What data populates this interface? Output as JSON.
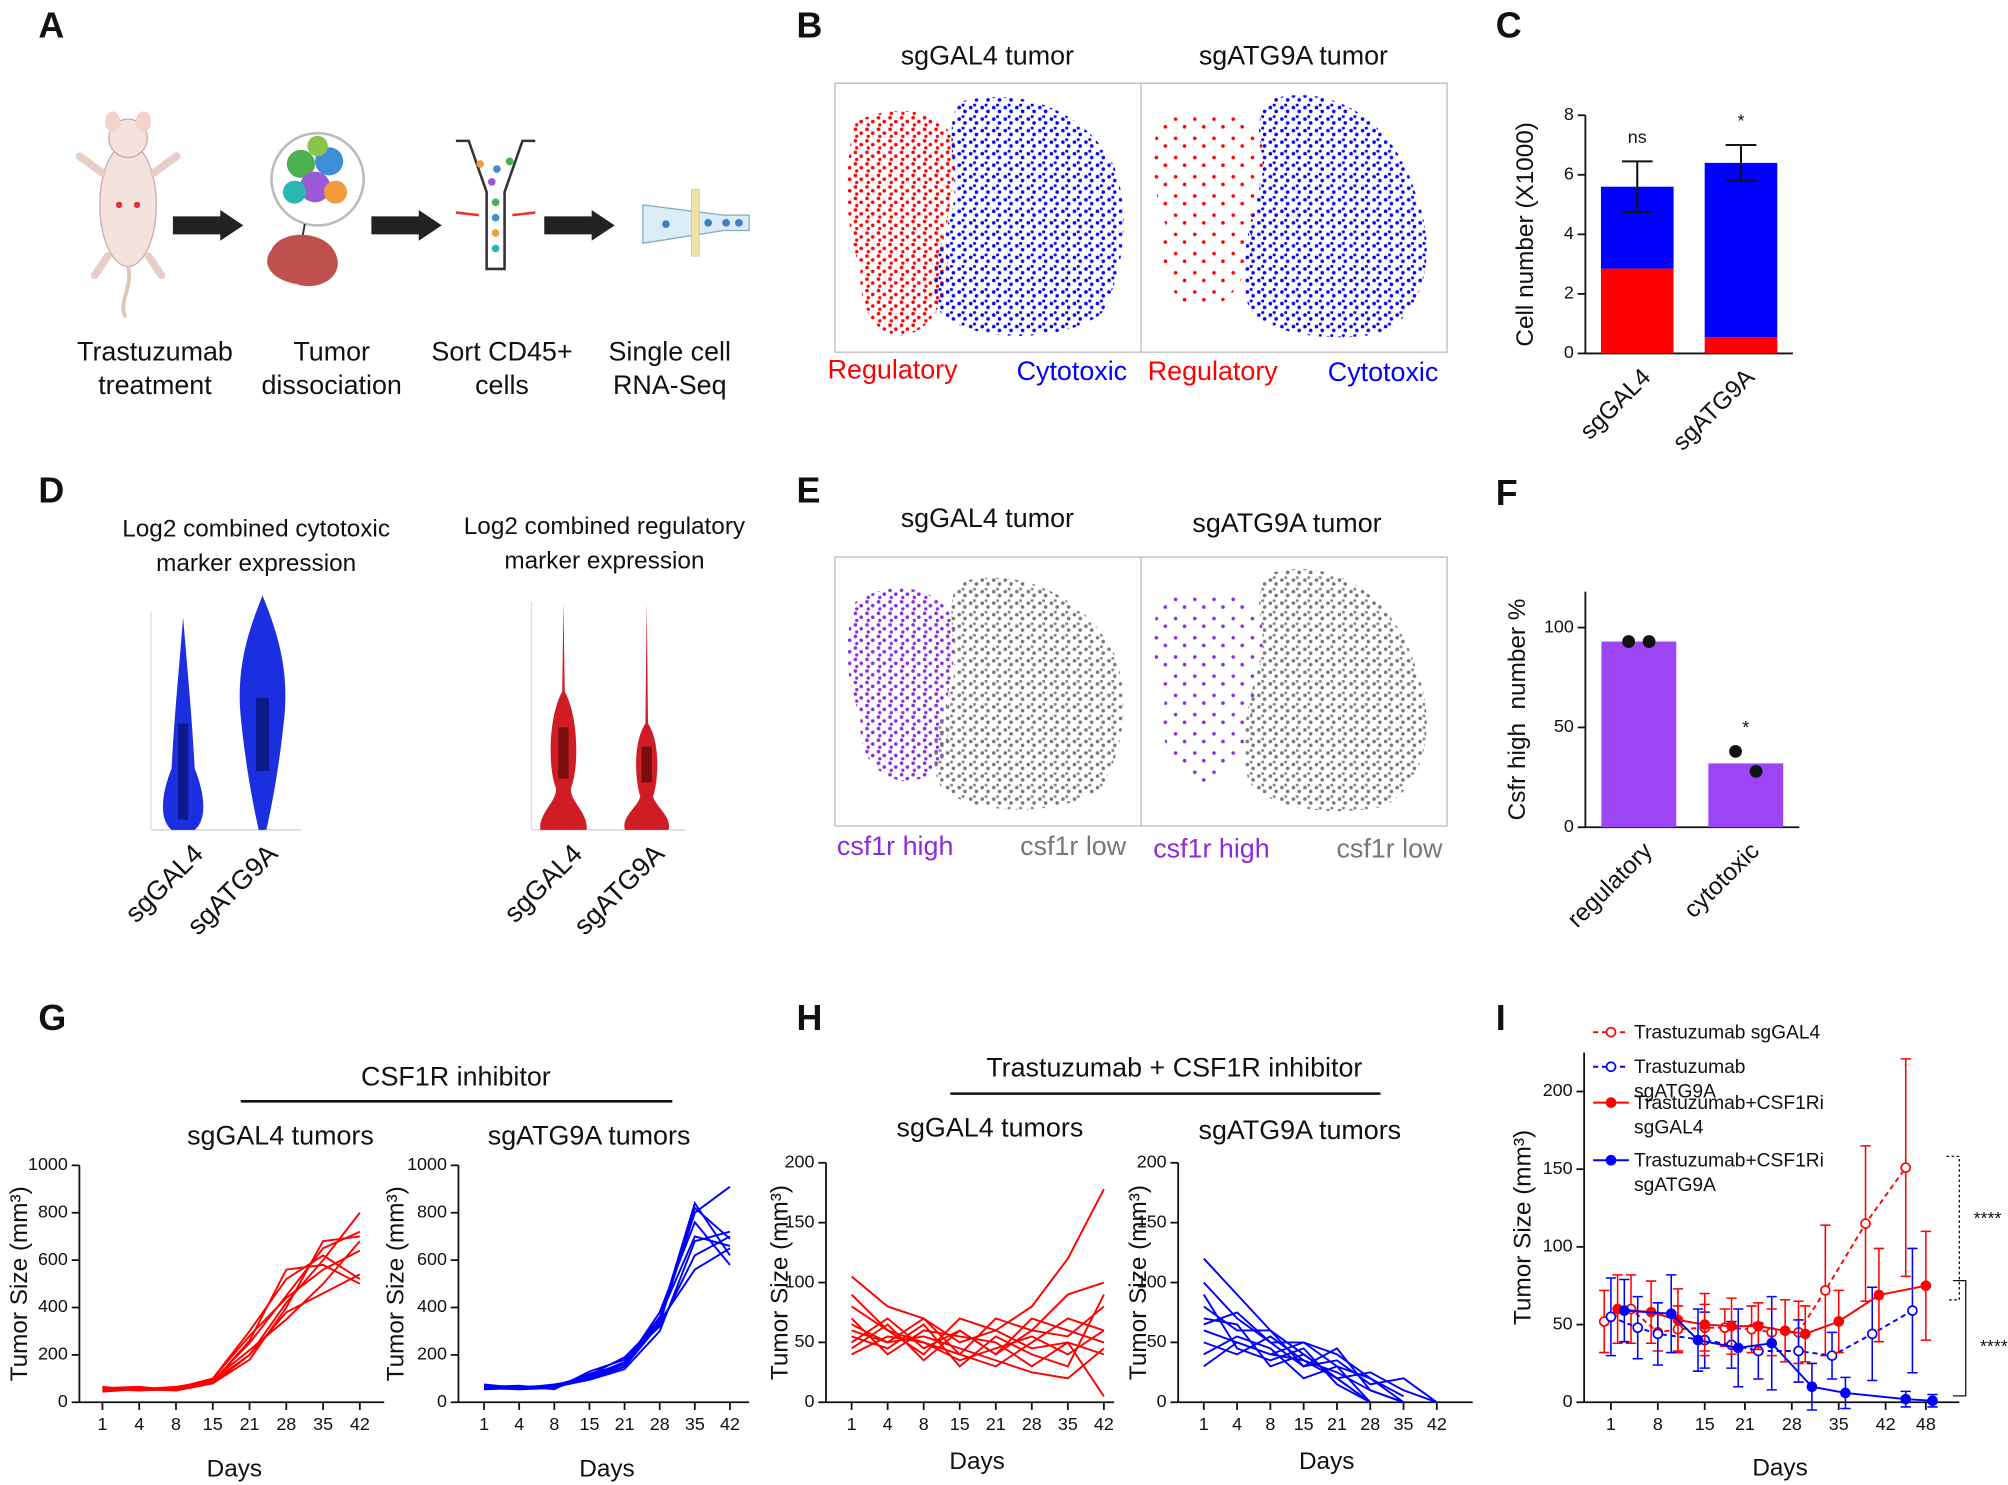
{
  "panel_labels": [
    "A",
    "B",
    "C",
    "D",
    "E",
    "F",
    "G",
    "H",
    "I"
  ],
  "panel_a": {
    "steps": [
      [
        "Trastuzumab",
        "treatment"
      ],
      [
        "Tumor",
        "dissociation"
      ],
      [
        "Sort CD45+",
        "cells"
      ],
      [
        "Single cell",
        "RNA-Seq"
      ]
    ]
  },
  "panel_b": {
    "titles": [
      "sgGAL4 tumor",
      "sgATG9A tumor"
    ],
    "labels": [
      "Regulatory",
      "Cytotoxic"
    ]
  },
  "panel_d": {
    "titles": [
      [
        "Log2 combined cytotoxic",
        "marker expression"
      ],
      [
        "Log2 combined regulatory",
        "marker expression"
      ]
    ],
    "categories": [
      "sgGAL4",
      "sgATG9A"
    ]
  },
  "panel_e": {
    "titles": [
      "sgGAL4 tumor",
      "sgATG9A tumor"
    ],
    "labels": [
      "csf1r high",
      "csf1r low"
    ]
  },
  "panel_g": {
    "header": "CSF1R inhibitor"
  },
  "panel_h": {
    "header": "Trastuzumab + CSF1R inhibitor"
  },
  "chart_data": [
    {
      "type": "bar",
      "stacked": true,
      "categories": [
        "sgGAL4",
        "sgATG9A"
      ],
      "series": [
        {
          "color": "#ff0000",
          "values": [
            2.85,
            0.55
          ]
        },
        {
          "color": "#0000ff",
          "values": [
            2.75,
            5.85
          ],
          "errors": [
            0.85,
            0.6
          ]
        }
      ],
      "annotations": [
        "ns",
        "*"
      ],
      "ylabel": "Cell number (X1000)",
      "ylim": [
        0,
        8
      ],
      "yticks": [
        0,
        2,
        4,
        6,
        8
      ]
    },
    {
      "type": "bar",
      "categories": [
        "regulatory",
        "cytotoxic"
      ],
      "values": [
        93,
        32
      ],
      "color": "#9b45f5",
      "points": [
        [
          93,
          93
        ],
        [
          38,
          28
        ]
      ],
      "annotations": [
        null,
        "*"
      ],
      "ylabel": "Csfr high  number %",
      "ylim": [
        0,
        118
      ],
      "yticks": [
        0,
        50,
        100
      ]
    },
    {
      "type": "line",
      "title": "sgGAL4 tumors",
      "color": "#ff0000",
      "xlabel": "Days",
      "ylabel": "Tumor Size (mm³)",
      "categories": [
        "1",
        "4",
        "8",
        "15",
        "21",
        "28",
        "35",
        "42"
      ],
      "ylim": [
        0,
        1000
      ],
      "yticks": [
        0,
        200,
        400,
        600,
        800,
        1000
      ],
      "series": [
        {
          "values": [
            50,
            55,
            50,
            80,
            200,
            420,
            600,
            800
          ]
        },
        {
          "values": [
            60,
            60,
            55,
            90,
            250,
            450,
            650,
            720
          ]
        },
        {
          "values": [
            55,
            50,
            60,
            100,
            300,
            520,
            620,
            520
          ]
        },
        {
          "values": [
            60,
            65,
            50,
            80,
            180,
            400,
            680,
            700
          ]
        },
        {
          "values": [
            45,
            55,
            55,
            95,
            220,
            350,
            500,
            680
          ]
        },
        {
          "values": [
            55,
            60,
            50,
            85,
            260,
            560,
            580,
            500
          ]
        },
        {
          "values": [
            65,
            50,
            55,
            100,
            280,
            440,
            560,
            640
          ]
        },
        {
          "values": [
            50,
            55,
            65,
            90,
            200,
            380,
            460,
            540
          ]
        }
      ]
    },
    {
      "type": "line",
      "title": "sgATG9A tumors",
      "color": "#0000ff",
      "xlabel": "Days",
      "ylabel": "Tumor Size (mm³)",
      "categories": [
        "1",
        "4",
        "8",
        "15",
        "21",
        "28",
        "35",
        "42"
      ],
      "ylim": [
        0,
        1000
      ],
      "yticks": [
        0,
        200,
        400,
        600,
        800,
        1000
      ],
      "series": [
        {
          "values": [
            60,
            65,
            60,
            120,
            160,
            350,
            840,
            620
          ]
        },
        {
          "values": [
            70,
            55,
            70,
            100,
            150,
            340,
            800,
            910
          ]
        },
        {
          "values": [
            55,
            60,
            65,
            110,
            170,
            360,
            700,
            660
          ]
        },
        {
          "values": [
            65,
            70,
            55,
            130,
            180,
            320,
            620,
            700
          ]
        },
        {
          "values": [
            60,
            55,
            60,
            105,
            160,
            380,
            760,
            580
          ]
        },
        {
          "values": [
            75,
            60,
            65,
            95,
            140,
            300,
            680,
            720
          ]
        },
        {
          "values": [
            55,
            65,
            70,
            115,
            190,
            340,
            560,
            650
          ]
        },
        {
          "values": [
            65,
            60,
            75,
            100,
            150,
            330,
            820,
            690
          ]
        }
      ]
    },
    {
      "type": "line",
      "title": "sgGAL4 tumors",
      "color": "#ff0000",
      "xlabel": "Days",
      "ylabel": "Tumor Size (mm³)",
      "categories": [
        "1",
        "4",
        "8",
        "15",
        "21",
        "28",
        "35",
        "42"
      ],
      "ylim": [
        0,
        200
      ],
      "yticks": [
        0,
        50,
        100,
        150,
        200
      ],
      "series": [
        {
          "values": [
            105,
            80,
            70,
            50,
            60,
            80,
            120,
            178
          ]
        },
        {
          "values": [
            80,
            60,
            50,
            40,
            70,
            60,
            90,
            100
          ]
        },
        {
          "values": [
            60,
            50,
            70,
            40,
            30,
            50,
            70,
            60
          ]
        },
        {
          "values": [
            50,
            70,
            45,
            60,
            40,
            60,
            55,
            80
          ]
        },
        {
          "values": [
            70,
            40,
            60,
            55,
            50,
            30,
            50,
            40
          ]
        },
        {
          "values": [
            40,
            55,
            50,
            35,
            45,
            55,
            40,
            60
          ]
        },
        {
          "values": [
            90,
            60,
            40,
            70,
            60,
            45,
            50,
            5
          ]
        },
        {
          "values": [
            55,
            45,
            65,
            30,
            55,
            40,
            30,
            90
          ]
        },
        {
          "values": [
            45,
            65,
            35,
            60,
            40,
            70,
            60,
            50
          ]
        },
        {
          "values": [
            65,
            50,
            55,
            45,
            35,
            25,
            20,
            45
          ]
        }
      ]
    },
    {
      "type": "line",
      "title": "sgATG9A tumors",
      "color": "#0000ff",
      "xlabel": "Days",
      "ylabel": "Tumor Size (mm³)",
      "categories": [
        "1",
        "4",
        "8",
        "15",
        "21",
        "28",
        "35",
        "42"
      ],
      "ylim": [
        0,
        200
      ],
      "yticks": [
        0,
        50,
        100,
        150,
        200
      ],
      "series": [
        {
          "values": [
            120,
            90,
            60,
            40,
            20,
            0,
            null,
            null
          ]
        },
        {
          "values": [
            100,
            70,
            50,
            50,
            40,
            20,
            0,
            null
          ]
        },
        {
          "values": [
            80,
            60,
            60,
            30,
            45,
            10,
            0,
            null
          ]
        },
        {
          "values": [
            60,
            50,
            40,
            50,
            30,
            0,
            null,
            null
          ]
        },
        {
          "values": [
            70,
            65,
            30,
            40,
            20,
            25,
            10,
            0
          ]
        },
        {
          "values": [
            50,
            40,
            55,
            35,
            25,
            10,
            0,
            null
          ]
        },
        {
          "values": [
            90,
            45,
            35,
            45,
            15,
            0,
            null,
            null
          ]
        },
        {
          "values": [
            40,
            55,
            45,
            20,
            30,
            20,
            5,
            null
          ]
        },
        {
          "values": [
            65,
            75,
            50,
            30,
            35,
            15,
            20,
            0
          ]
        },
        {
          "values": [
            30,
            50,
            40,
            35,
            20,
            0,
            null,
            null
          ]
        }
      ]
    },
    {
      "type": "line",
      "xlabel": "Days",
      "ylabel": "Tumor Size (mm³)",
      "legend": "top-left",
      "xlim": [
        -3,
        53
      ],
      "xticks": [
        1,
        8,
        15,
        21,
        28,
        35,
        42,
        48
      ],
      "ylim": [
        0,
        225
      ],
      "yticks": [
        0,
        50,
        100,
        150,
        200
      ],
      "annotations": [
        "****",
        "****"
      ],
      "series": [
        {
          "name": "Trastuzumab sgGAL4",
          "color": "#ff0000",
          "dashed": true,
          "filled": false,
          "x": [
            0,
            4,
            8,
            11,
            15,
            18,
            22,
            25,
            29,
            33,
            39,
            45
          ],
          "values": [
            52,
            60,
            45,
            47,
            48,
            48,
            47,
            45,
            45,
            72,
            115,
            151
          ],
          "errors": [
            20,
            22,
            12,
            15,
            15,
            12,
            15,
            15,
            20,
            42,
            50,
            70
          ]
        },
        {
          "name": "Trastuzumab sgATG9A",
          "color": "#0000ff",
          "dashed": true,
          "filled": false,
          "x": [
            1,
            5,
            8,
            15,
            19,
            23,
            29,
            34,
            40,
            46
          ],
          "values": [
            55,
            48,
            44,
            40,
            37,
            33,
            33,
            30,
            44,
            59
          ],
          "errors": [
            25,
            20,
            20,
            18,
            15,
            18,
            20,
            15,
            30,
            40
          ]
        },
        {
          "name": "Trastuzumab+CSF1Ri sgGAL4",
          "color": "#ff0000",
          "dashed": false,
          "filled": true,
          "x": [
            2,
            7,
            11,
            15,
            19,
            23,
            27,
            30,
            35,
            41,
            48
          ],
          "values": [
            60,
            58,
            53,
            50,
            49,
            49,
            46,
            44,
            52,
            69,
            75
          ],
          "errors": [
            22,
            20,
            20,
            20,
            18,
            15,
            20,
            18,
            20,
            30,
            35
          ]
        },
        {
          "name": "Trastuzumab+CSF1Ri sgATG9A",
          "color": "#0000ff",
          "dashed": false,
          "filled": true,
          "x": [
            3,
            10,
            14,
            20,
            25,
            31,
            36,
            45,
            49
          ],
          "values": [
            59,
            57,
            40,
            35,
            38,
            10,
            6,
            2,
            1
          ],
          "errors": [
            20,
            25,
            20,
            25,
            30,
            15,
            10,
            5,
            4
          ]
        }
      ]
    }
  ]
}
